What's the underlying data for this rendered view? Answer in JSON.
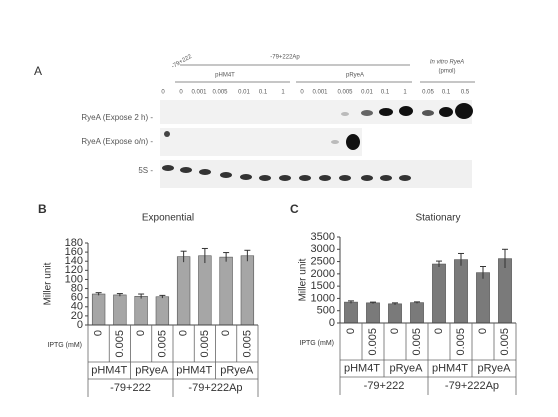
{
  "panel_a": {
    "letter": "A",
    "control_label": "-79+222",
    "strain_label": "-79+222Ap",
    "plasmids": [
      "pHM4T",
      "pRyeA"
    ],
    "in_vitro_label": "In vitro RyeA",
    "in_vitro_unit": "(pmol)",
    "lanes": [
      "0",
      "0",
      "0.001",
      "0.005",
      "0.01",
      "0.1",
      "1",
      "0",
      "0.001",
      "0.005",
      "0.01",
      "0.1",
      "1",
      "0.05",
      "0.1",
      "0.5"
    ],
    "rows": [
      "RyeA (Expose 2 h) -",
      "RyeA (Expose o/n) -",
      "5S -"
    ]
  },
  "chart_data": [
    {
      "type": "bar",
      "panel": "B",
      "title": "Exponential",
      "y_label": "Miller unit",
      "x_label": "IPTG (mM)",
      "categories": [
        "0",
        "0.005",
        "0",
        "0.005",
        "0",
        "0.005",
        "0",
        "0.005"
      ],
      "groups": [
        "pHM4T",
        "pRyeA",
        "pHM4T",
        "pRyeA"
      ],
      "supergroups": [
        "-79+222",
        "-79+222Ap"
      ],
      "series": [
        {
          "color": "#a6a6a6",
          "values": [
            68,
            66,
            63,
            62,
            150,
            152,
            149,
            152
          ],
          "errors": [
            3,
            3,
            5,
            3,
            12,
            16,
            10,
            12
          ]
        }
      ],
      "ylim": [
        0,
        180
      ],
      "yticks": [
        0,
        20,
        40,
        60,
        80,
        100,
        120,
        140,
        160,
        180
      ]
    },
    {
      "type": "bar",
      "panel": "C",
      "title": "Stationary",
      "y_label": "Miller unit",
      "x_label": "IPTG (mM)",
      "categories": [
        "0",
        "0.005",
        "0",
        "0.005",
        "0",
        "0.005",
        "0",
        "0.005"
      ],
      "groups": [
        "pHM4T",
        "pRyeA",
        "pHM4T",
        "pRyeA"
      ],
      "supergroups": [
        "-79+222",
        "-79+222Ap"
      ],
      "series": [
        {
          "color": "#7a7a7a",
          "values": [
            850,
            820,
            780,
            830,
            2400,
            2580,
            2050,
            2620
          ],
          "errors": [
            50,
            30,
            40,
            30,
            120,
            250,
            250,
            380
          ]
        }
      ],
      "ylim": [
        0,
        3500
      ],
      "yticks": [
        0,
        500,
        1000,
        1500,
        2000,
        2500,
        3000,
        3500
      ]
    }
  ]
}
